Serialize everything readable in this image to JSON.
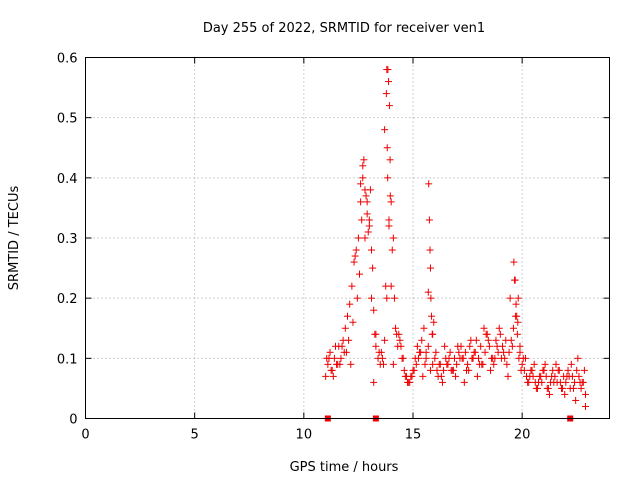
{
  "chart_data": {
    "type": "scatter",
    "title": "Day 255 of 2022, SRMTID for receiver ven1",
    "xlabel": "GPS time / hours",
    "ylabel": "SRMTID / TECUs",
    "xlim": [
      0,
      24
    ],
    "ylim": [
      0,
      0.6
    ],
    "xticks": [
      0,
      5,
      10,
      15,
      20
    ],
    "yticks": [
      0,
      0.1,
      0.2,
      0.3,
      0.4,
      0.5,
      0.6
    ],
    "grid": true,
    "marker": "+",
    "color": "#ee0000",
    "series": [
      {
        "name": "SRMTID",
        "x": [
          11.0,
          11.1,
          11.2,
          11.3,
          11.4,
          11.5,
          11.6,
          11.7,
          11.8,
          11.9,
          12.0,
          12.1,
          12.2,
          12.3,
          12.4,
          12.5,
          12.6,
          12.7,
          12.8,
          12.9,
          13.0,
          13.1,
          13.2,
          13.3,
          13.4,
          13.5,
          13.6,
          13.7,
          13.8,
          13.9,
          14.0,
          14.1,
          14.2,
          14.3,
          14.4,
          14.5,
          14.6,
          14.7,
          14.8,
          14.9,
          15.0,
          15.1,
          15.2,
          15.3,
          15.4,
          15.5,
          15.6,
          15.7,
          15.8,
          15.9,
          16.0,
          16.1,
          16.2,
          16.3,
          16.4,
          16.5,
          16.6,
          16.7,
          16.8,
          16.9,
          17.0,
          17.1,
          17.2,
          17.3,
          17.4,
          17.5,
          17.6,
          17.7,
          17.8,
          17.9,
          18.0,
          18.1,
          18.2,
          18.3,
          18.4,
          18.5,
          18.6,
          18.7,
          18.8,
          18.9,
          19.0,
          19.1,
          19.2,
          19.3,
          19.4,
          19.5,
          19.6,
          19.7,
          19.8,
          19.9,
          20.0,
          20.1,
          20.2,
          20.3,
          20.4,
          20.5,
          20.6,
          20.7,
          20.8,
          20.9,
          21.0,
          21.1,
          21.2,
          21.3,
          21.4,
          21.5,
          21.6,
          21.7,
          21.8,
          21.9,
          22.0,
          22.1,
          22.2,
          22.3,
          22.4,
          22.5,
          22.6,
          22.7,
          22.8,
          22.9,
          11.05,
          11.25,
          11.45,
          11.65,
          11.85,
          12.05,
          12.25,
          12.45,
          12.55,
          12.65,
          12.75,
          12.85,
          12.95,
          13.05,
          13.15,
          13.25,
          13.45,
          13.65,
          13.75,
          13.82,
          13.85,
          13.88,
          13.92,
          13.95,
          14.05,
          14.15,
          14.35,
          14.55,
          14.75,
          14.95,
          15.15,
          15.35,
          15.55,
          15.72,
          15.75,
          15.78,
          15.82,
          15.85,
          15.9,
          16.05,
          16.25,
          16.45,
          16.65,
          16.85,
          17.05,
          17.25,
          17.45,
          17.65,
          17.85,
          18.05,
          18.25,
          18.45,
          18.65,
          18.85,
          19.05,
          19.25,
          19.45,
          19.62,
          19.68,
          19.72,
          19.78,
          19.85,
          19.95,
          20.15,
          20.35,
          20.55,
          20.75,
          20.95,
          21.15,
          21.35,
          21.55,
          21.75,
          21.95,
          22.15,
          22.35,
          22.55,
          22.75,
          22.85,
          11.15,
          11.35,
          11.55,
          11.75,
          11.95,
          12.15,
          12.35,
          12.6,
          12.7,
          12.8,
          12.9,
          13.0,
          13.1,
          13.2,
          13.3,
          13.55,
          13.7,
          13.78,
          13.8,
          13.84,
          13.9,
          13.96,
          14.0,
          14.1,
          14.25,
          14.45,
          14.65,
          14.85,
          15.05,
          15.25,
          15.45,
          15.6,
          15.7,
          15.8,
          15.88,
          15.95,
          16.15,
          16.35,
          16.55,
          16.75,
          16.95,
          17.15,
          17.35,
          17.55,
          17.75,
          17.95,
          18.15,
          18.35,
          18.55,
          18.75,
          18.95,
          19.15,
          19.35,
          19.55,
          19.65,
          19.75,
          19.82,
          19.9,
          20.05,
          20.25,
          20.45,
          20.65,
          20.85,
          21.05,
          21.25,
          21.45,
          21.65,
          21.85,
          22.05,
          22.25,
          22.45,
          22.65,
          22.9
        ],
        "y": [
          0.07,
          0.09,
          0.11,
          0.08,
          0.1,
          0.09,
          0.12,
          0.1,
          0.13,
          0.15,
          0.17,
          0.19,
          0.22,
          0.26,
          0.28,
          0.3,
          0.36,
          0.4,
          0.38,
          0.34,
          0.33,
          0.28,
          0.18,
          0.12,
          0.1,
          0.09,
          0.1,
          0.13,
          0.2,
          0.33,
          0.36,
          0.3,
          0.15,
          0.12,
          0.13,
          0.1,
          0.08,
          0.07,
          0.06,
          0.07,
          0.08,
          0.1,
          0.12,
          0.11,
          0.13,
          0.15,
          0.1,
          0.12,
          0.08,
          0.09,
          0.1,
          0.08,
          0.09,
          0.07,
          0.08,
          0.1,
          0.09,
          0.11,
          0.08,
          0.1,
          0.09,
          0.11,
          0.12,
          0.1,
          0.11,
          0.09,
          0.12,
          0.1,
          0.11,
          0.13,
          0.1,
          0.12,
          0.09,
          0.11,
          0.14,
          0.12,
          0.1,
          0.09,
          0.13,
          0.11,
          0.14,
          0.12,
          0.1,
          0.09,
          0.11,
          0.13,
          0.15,
          0.17,
          0.16,
          0.12,
          0.09,
          0.08,
          0.07,
          0.06,
          0.08,
          0.07,
          0.06,
          0.05,
          0.07,
          0.06,
          0.08,
          0.07,
          0.05,
          0.06,
          0.08,
          0.07,
          0.06,
          0.08,
          0.05,
          0.07,
          0.06,
          0.08,
          0.05,
          0.07,
          0.06,
          0.08,
          0.07,
          0.05,
          0.06,
          0.04,
          0.1,
          0.08,
          0.12,
          0.09,
          0.11,
          0.13,
          0.16,
          0.2,
          0.24,
          0.33,
          0.43,
          0.37,
          0.31,
          0.38,
          0.25,
          0.14,
          0.11,
          0.09,
          0.22,
          0.45,
          0.58,
          0.56,
          0.52,
          0.43,
          0.28,
          0.2,
          0.14,
          0.1,
          0.06,
          0.07,
          0.09,
          0.11,
          0.09,
          0.39,
          0.33,
          0.28,
          0.2,
          0.17,
          0.14,
          0.11,
          0.09,
          0.12,
          0.1,
          0.08,
          0.12,
          0.1,
          0.08,
          0.13,
          0.11,
          0.09,
          0.15,
          0.13,
          0.1,
          0.12,
          0.1,
          0.13,
          0.2,
          0.26,
          0.23,
          0.19,
          0.14,
          0.1,
          0.08,
          0.1,
          0.07,
          0.09,
          0.06,
          0.08,
          0.05,
          0.07,
          0.09,
          0.06,
          0.04,
          0.07,
          0.05,
          0.1,
          0.06,
          0.08,
          0.1,
          0.07,
          0.09,
          0.12,
          0.11,
          0.09,
          0.27,
          0.39,
          0.42,
          0.3,
          0.36,
          0.32,
          0.2,
          0.06,
          0.14,
          0.11,
          0.48,
          0.54,
          0.58,
          0.4,
          0.32,
          0.37,
          0.22,
          0.09,
          0.14,
          0.12,
          0.07,
          0.06,
          0.08,
          0.1,
          0.07,
          0.11,
          0.21,
          0.25,
          0.14,
          0.16,
          0.07,
          0.06,
          0.09,
          0.08,
          0.07,
          0.1,
          0.06,
          0.08,
          0.1,
          0.07,
          0.09,
          0.14,
          0.08,
          0.1,
          0.15,
          0.11,
          0.07,
          0.12,
          0.23,
          0.17,
          0.2,
          0.11,
          0.1,
          0.06,
          0.08,
          0.05,
          0.07,
          0.09,
          0.04,
          0.06,
          0.08,
          0.05,
          0.07,
          0.09,
          0.03,
          0.06,
          0.02
        ]
      }
    ],
    "bottom_markers_x": [
      11.1,
      13.3,
      22.2
    ]
  }
}
